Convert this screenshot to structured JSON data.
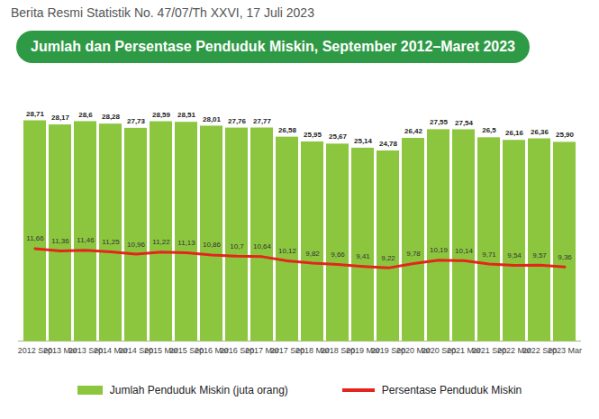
{
  "chart_data": {
    "type": "bar",
    "subtitle": "Berita Resmi Statistik No. 47/07/Th XXVI, 17 Juli 2023",
    "title": "Jumlah dan Persentase Penduduk Miskin, September 2012–Maret 2023",
    "categories": [
      "2012 Sep",
      "2013 Mar",
      "2013 Sep",
      "2014 Mar",
      "2014 Sep",
      "2015 Mar",
      "2015 Sep",
      "2016 Mar",
      "2016 Sep",
      "2017 Mar",
      "2017 Sep",
      "2018 Mar",
      "2018 Sep",
      "2019 Mar",
      "2019 Sep",
      "2020 Mar",
      "2020 Sep",
      "2021 Mar",
      "2021 Sep",
      "2022 Mar",
      "2022 Sep",
      "2023 Mar"
    ],
    "series": [
      {
        "name": "Jumlah Penduduk Miskin (juta orang)",
        "type": "bar",
        "color": "#8cc63f",
        "values": [
          28.71,
          28.17,
          28.6,
          28.28,
          27.73,
          28.59,
          28.51,
          28.01,
          27.76,
          27.77,
          26.58,
          25.95,
          25.67,
          25.14,
          24.78,
          26.42,
          27.55,
          27.54,
          26.5,
          26.16,
          26.36,
          25.9
        ],
        "value_labels": [
          "28,71",
          "28,17",
          "28,6",
          "28,28",
          "27,73",
          "28,59",
          "28,51",
          "28,01",
          "27,76",
          "27,77",
          "26,58",
          "25,95",
          "25,67",
          "25,14",
          "24,78",
          "26,42",
          "27,55",
          "27,54",
          "26,5",
          "26,16",
          "26,36",
          "25,90"
        ]
      },
      {
        "name": "Persentase Penduduk Miskin",
        "type": "line",
        "axis": "y2",
        "color": "#e3261c",
        "values": [
          11.66,
          11.36,
          11.46,
          11.25,
          10.96,
          11.22,
          11.13,
          10.86,
          10.7,
          10.64,
          10.12,
          9.82,
          9.66,
          9.41,
          9.22,
          9.78,
          10.19,
          10.14,
          9.71,
          9.54,
          9.57,
          9.36
        ],
        "value_labels": [
          "11,66",
          "11,36",
          "11,46",
          "11,25",
          "10,96",
          "11,22",
          "11,13",
          "10,86",
          "10,7",
          "10,64",
          "10,12",
          "9,82",
          "9,66",
          "9,41",
          "9,22",
          "9,78",
          "10,19",
          "10,14",
          "9,71",
          "9,54",
          "9,57",
          "9,36"
        ]
      }
    ],
    "ylim": [
      0,
      31
    ],
    "yticks": [],
    "y2lim": [
      0,
      30
    ],
    "y2ticks": [],
    "tick_labels": "x",
    "data_labels": true,
    "grid": false,
    "legend": "bottom"
  }
}
